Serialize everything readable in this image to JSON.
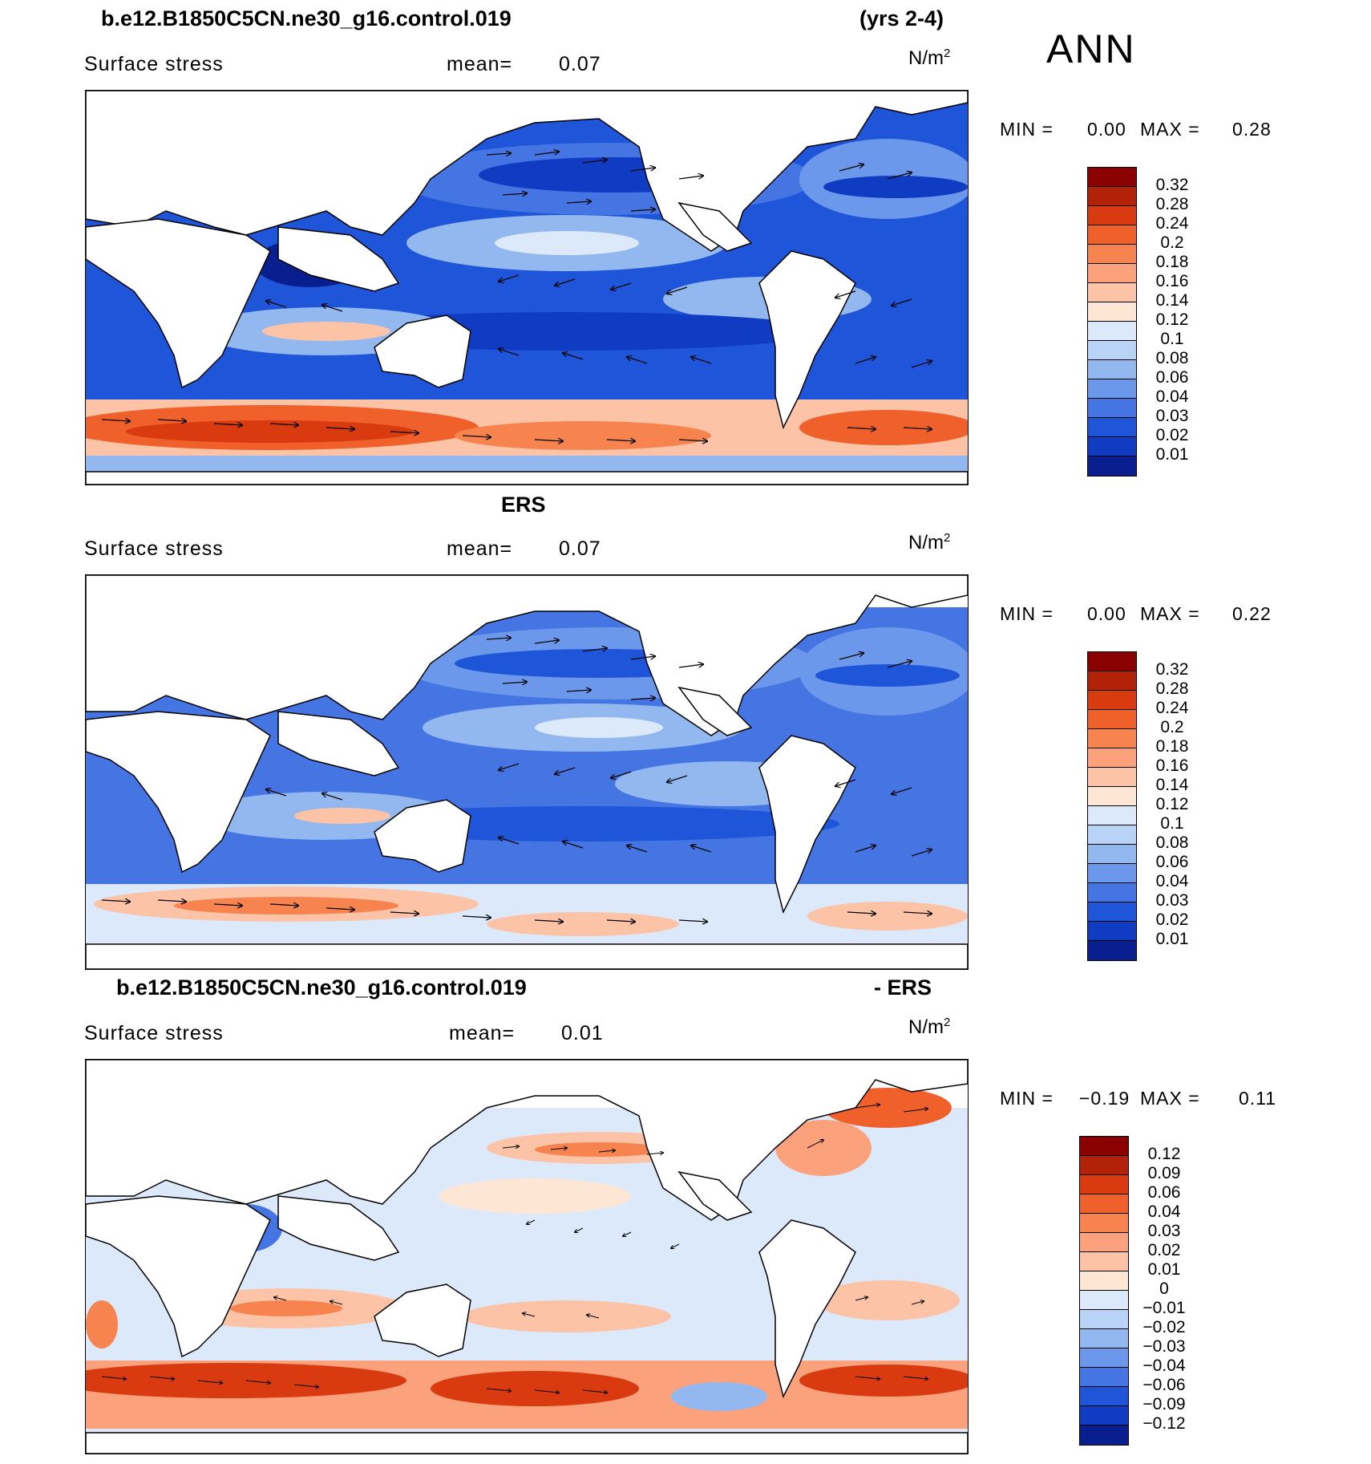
{
  "header": {
    "case": "b.e12.B1850C5CN.ne30_g16.control.019",
    "years": "(yrs 2-4)",
    "season": "ANN"
  },
  "panels": [
    {
      "title": "",
      "variable": "Surface stress",
      "mean_label": "mean=",
      "mean_value": "0.07",
      "unit": "N/m",
      "unit_sup": "2",
      "min_label": "MIN =",
      "min_value": "0.00",
      "max_label": "MAX =",
      "max_value": "0.28"
    },
    {
      "title": "ERS",
      "variable": "Surface stress",
      "mean_label": "mean=",
      "mean_value": "0.07",
      "unit": "N/m",
      "unit_sup": "2",
      "min_label": "MIN =",
      "min_value": "0.00",
      "max_label": "MAX =",
      "max_value": "0.22"
    },
    {
      "title": "b.e12.B1850C5CN.ne30_g16.control.019",
      "title_right": "- ERS",
      "variable": "Surface stress",
      "mean_label": "mean=",
      "mean_value": "0.01",
      "unit": "N/m",
      "unit_sup": "2",
      "min_label": "MIN =",
      "min_value": "−0.19",
      "max_label": "MAX =",
      "max_value": "0.11"
    }
  ],
  "colorbars": {
    "absolute": {
      "labels": [
        "0.32",
        "0.28",
        "0.24",
        "0.2",
        "0.18",
        "0.16",
        "0.14",
        "0.12",
        "0.1",
        "0.08",
        "0.06",
        "0.04",
        "0.03",
        "0.02",
        "0.01"
      ],
      "colors": [
        "#8b0000",
        "#b22208",
        "#d93a0f",
        "#f0602a",
        "#f7834f",
        "#fba27c",
        "#fcc3a6",
        "#fde6d3",
        "#dbe9fa",
        "#b8d3f5",
        "#93b8f0",
        "#6b98ea",
        "#4475e3",
        "#1f55d8",
        "#0f3cc2",
        "#0a1f8f"
      ]
    },
    "difference": {
      "labels": [
        "0.12",
        "0.09",
        "0.06",
        "0.04",
        "0.03",
        "0.02",
        "0.01",
        "0",
        "−0.01",
        "−0.02",
        "−0.03",
        "−0.04",
        "−0.06",
        "−0.09",
        "−0.12"
      ],
      "colors": [
        "#8b0000",
        "#b22208",
        "#d93a0f",
        "#f0602a",
        "#f7834f",
        "#fba27c",
        "#fcc3a6",
        "#fde6d3",
        "#dbe9fa",
        "#b8d3f5",
        "#93b8f0",
        "#6b98ea",
        "#4475e3",
        "#1f55d8",
        "#0f3cc2",
        "#0a1f8f"
      ]
    }
  }
}
